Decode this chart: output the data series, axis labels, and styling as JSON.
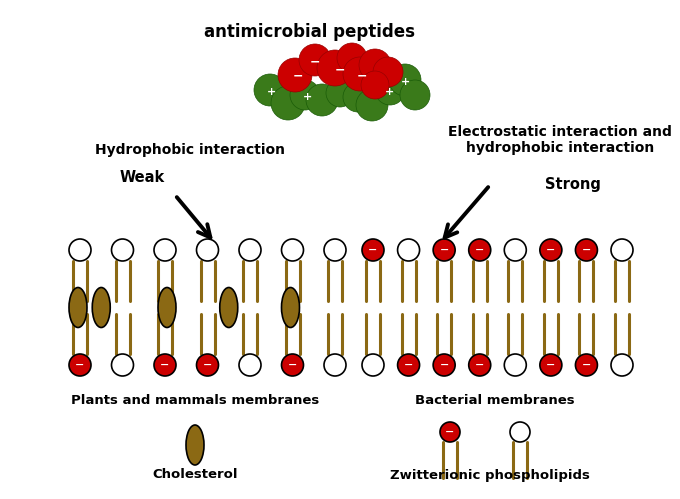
{
  "bg_color": "#ffffff",
  "title_text": "antimicrobial peptides",
  "olive_color": "#8B6914",
  "red_color": "#CC0000",
  "green_color": "#3A7A1A",
  "white_color": "#FFFFFF",
  "black_color": "#000000",
  "left_label": "Hydrophobic interaction",
  "weak_label": "Weak",
  "right_label1": "Electrostatic interaction and",
  "right_label2": "hydrophobic interaction",
  "strong_label": "Strong",
  "plants_label": "Plants and mammals membranes",
  "bacterial_label": "Bacterial membranes",
  "cholesterol_label": "Cholesterol",
  "zwitterionic_label": "Zwitterionic phospholipids"
}
